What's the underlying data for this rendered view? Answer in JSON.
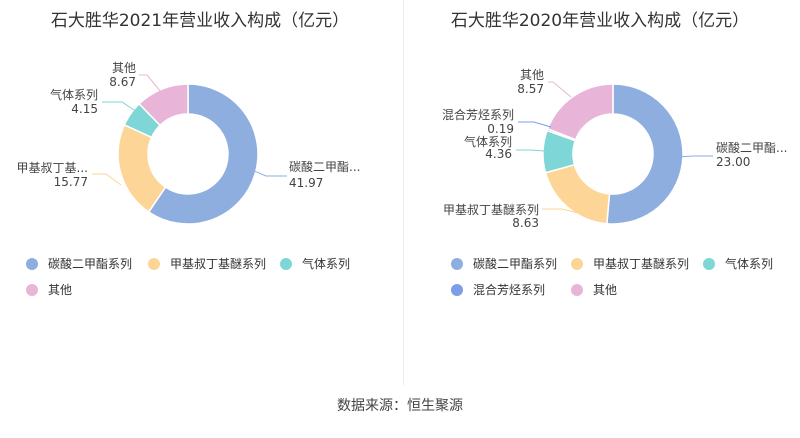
{
  "source": "数据来源：恒生聚源",
  "chart_data": [
    {
      "type": "pie",
      "variant": "donut",
      "title": "石大胜华2021年营业收入构成（亿元）",
      "categories": [
        "碳酸二甲酯系列",
        "甲基叔丁基醚系列",
        "气体系列",
        "其他"
      ],
      "label_names": [
        "碳酸二甲酯...",
        "甲基叔丁基...",
        "气体系列",
        "其他"
      ],
      "values": [
        41.97,
        15.77,
        4.15,
        8.67
      ],
      "colors": [
        "#8eaee0",
        "#fdd596",
        "#7fd6d6",
        "#e8b5d8"
      ]
    },
    {
      "type": "pie",
      "variant": "donut",
      "title": "石大胜华2020年营业收入构成（亿元）",
      "categories": [
        "碳酸二甲酯系列",
        "甲基叔丁基醚系列",
        "气体系列",
        "混合芳烃系列",
        "其他"
      ],
      "label_names": [
        "碳酸二甲酯...",
        "甲基叔丁基醚系列",
        "气体系列",
        "混合芳烃系列",
        "其他"
      ],
      "values": [
        23.0,
        8.63,
        4.36,
        0.19,
        8.57
      ],
      "colors": [
        "#8eaee0",
        "#fdd596",
        "#7fd6d6",
        "#7c9ee8",
        "#e8b5d8"
      ]
    }
  ]
}
